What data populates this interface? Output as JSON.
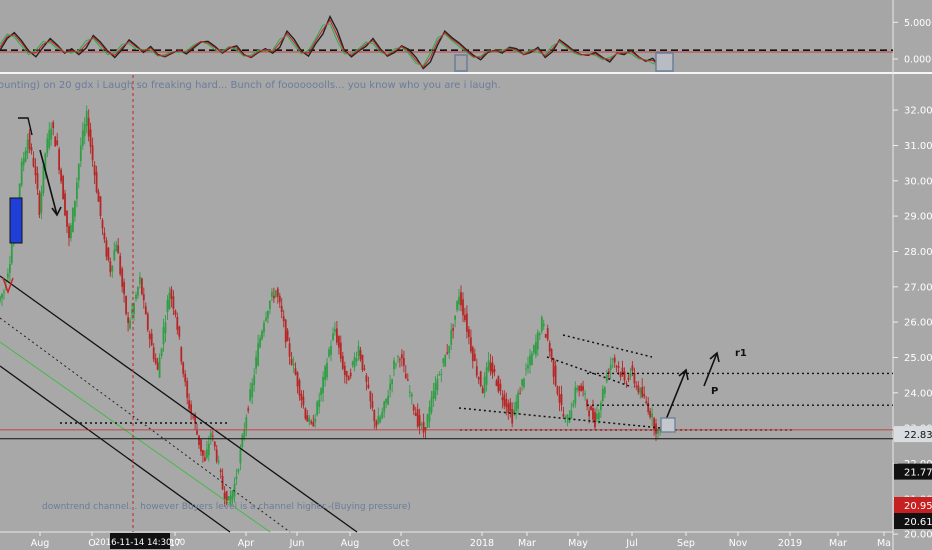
{
  "chart_data": [
    {
      "type": "line",
      "panel": "oscillator",
      "y_ticks": [
        "5.0000",
        "0.0000"
      ],
      "ylim": [
        -1.5,
        7.5
      ],
      "zero_line": 0,
      "series": [
        {
          "color": "#222222",
          "y": [
            1.2,
            2.8,
            3.6,
            2.5,
            1.1,
            0.3,
            1.6,
            2.8,
            1.9,
            0.8,
            1.4,
            0.6,
            1.5,
            3.2,
            2.3,
            1.1,
            0.2,
            1.3,
            2.6,
            1.8,
            0.9,
            1.7,
            0.6,
            0.3,
            0.8,
            1.2,
            0.7,
            1.5,
            2.3,
            2.4,
            1.7,
            0.8,
            1.5,
            1.8,
            0.6,
            0.2,
            0.9,
            1.4,
            0.8,
            1.6,
            3.8,
            2.7,
            1.1,
            0.4,
            2.1,
            3.4,
            5.8,
            3.9,
            1.2,
            0.3,
            1.1,
            1.7,
            2.8,
            1.4,
            0.4,
            0.9,
            1.8,
            1.3,
            0.2,
            -1.3,
            -0.4,
            1.9,
            3.8,
            2.9,
            2.2,
            1.3,
            0.5,
            -0.1,
            0.9,
            1.2,
            0.8,
            1.6,
            1.4,
            0.6,
            0.9,
            1.6,
            0.2,
            1.0,
            2.6,
            1.9,
            1.1,
            0.6,
            0.5,
            0.9,
            0.2,
            -0.4,
            0.8,
            0.6,
            1.2,
            0.3,
            -0.3,
            0.1,
            -1.2
          ]
        },
        {
          "color": "#22b14c",
          "y": [
            2.0,
            3.4,
            3.0,
            1.8,
            0.6,
            1.2,
            2.4,
            2.2,
            1.4,
            1.0,
            0.8,
            1.2,
            2.5,
            2.8,
            1.6,
            0.6,
            0.8,
            2.0,
            2.1,
            1.3,
            1.3,
            1.2,
            0.4,
            0.6,
            1.0,
            0.9,
            1.1,
            1.9,
            2.4,
            2.0,
            1.2,
            1.1,
            1.7,
            1.2,
            0.4,
            0.5,
            1.2,
            1.1,
            1.2,
            2.7,
            3.2,
            1.9,
            0.7,
            1.2,
            2.8,
            4.6,
            4.8,
            2.5,
            0.7,
            0.7,
            1.4,
            2.3,
            2.1,
            0.9,
            0.6,
            1.4,
            1.6,
            0.7,
            -0.6,
            -0.9,
            0.8,
            2.9,
            3.4,
            2.5,
            1.7,
            0.9,
            0.2,
            0.4,
            1.1,
            1.0,
            1.2,
            1.5,
            1.0,
            0.7,
            1.3,
            0.9,
            0.6,
            1.8,
            2.3,
            1.5,
            0.8,
            0.5,
            0.7,
            0.5,
            -0.1,
            0.2,
            0.7,
            0.9,
            0.7,
            0.0,
            -0.1,
            -0.6,
            -0.9
          ]
        },
        {
          "color": "#cc2222",
          "y": [
            1.6,
            3.1,
            3.3,
            2.2,
            0.9,
            0.8,
            2.0,
            2.5,
            1.7,
            0.9,
            1.1,
            0.9,
            2.0,
            3.0,
            2.0,
            0.9,
            0.5,
            1.6,
            2.4,
            1.6,
            1.1,
            1.5,
            0.5,
            0.4,
            0.9,
            1.1,
            0.9,
            1.7,
            2.4,
            2.2,
            1.5,
            0.9,
            1.6,
            1.5,
            0.5,
            0.3,
            1.0,
            1.3,
            1.0,
            2.2,
            3.5,
            2.3,
            0.9,
            0.8,
            2.5,
            4.0,
            5.3,
            3.2,
            1.0,
            0.5,
            1.2,
            2.0,
            2.5,
            1.2,
            0.5,
            1.1,
            1.7,
            1.0,
            -0.2,
            -1.1,
            0.2,
            2.4,
            3.6,
            2.7,
            2.0,
            1.1,
            0.3,
            0.2,
            1.0,
            1.1,
            1.0,
            1.5,
            1.2,
            0.6,
            1.1,
            1.3,
            0.4,
            1.4,
            2.5,
            1.7,
            1.0,
            0.6,
            0.6,
            0.7,
            0.1,
            -0.1,
            0.8,
            0.8,
            1.0,
            0.2,
            -0.2,
            -0.2,
            -1.0
          ]
        }
      ]
    },
    {
      "type": "candlestick",
      "panel": "price",
      "ylim": [
        20.4,
        32.4
      ],
      "y_ticks": [
        "32.00",
        "31.00",
        "30.00",
        "29.00",
        "28.00",
        "27.00",
        "26.00",
        "25.00",
        "24.00",
        "23.00",
        "22.00",
        "21.00",
        "20.00"
      ],
      "x_tick_labels": [
        "Aug",
        "O",
        "2016-11-14 14:30:00",
        "17",
        "Apr",
        "Jun",
        "Aug",
        "Oct",
        "2018",
        "Mar",
        "May",
        "Jul",
        "Sep",
        "Nov",
        "2019",
        "Mar",
        "Ma"
      ],
      "close": [
        26.9,
        27.8,
        29.1,
        30.4,
        31.2,
        30.5,
        29.2,
        30.8,
        31.6,
        30.9,
        29.6,
        28.3,
        29.5,
        31.0,
        31.8,
        30.6,
        29.4,
        28.2,
        27.5,
        28.3,
        27.0,
        25.9,
        26.5,
        27.2,
        26.1,
        25.3,
        24.6,
        25.8,
        26.9,
        26.3,
        25.0,
        23.8,
        23.3,
        22.6,
        22.0,
        22.9,
        22.2,
        21.3,
        20.9,
        21.4,
        22.3,
        23.4,
        24.2,
        25.3,
        26.1,
        26.6,
        26.9,
        26.2,
        25.3,
        24.7,
        24.1,
        23.4,
        23.0,
        23.6,
        24.3,
        25.2,
        25.8,
        25.0,
        24.3,
        24.8,
        25.3,
        24.5,
        23.7,
        23.1,
        23.4,
        24.0,
        24.8,
        25.1,
        24.4,
        23.8,
        23.2,
        22.9,
        23.5,
        24.2,
        24.7,
        25.2,
        25.9,
        26.8,
        26.1,
        25.3,
        24.6,
        24.1,
        24.8,
        24.5,
        24.0,
        23.7,
        23.3,
        23.9,
        24.5,
        24.9,
        25.4,
        26.0,
        25.5,
        24.6,
        23.8,
        23.1,
        23.6,
        24.2,
        24.0,
        23.5,
        23.2,
        23.8,
        24.5,
        25.0,
        24.7,
        24.3,
        24.6,
        24.2,
        23.9,
        23.6,
        23.1,
        22.8
      ],
      "level_lines": [
        {
          "value": 24.55,
          "style": "dotted",
          "label": "r1"
        },
        {
          "value": 23.65,
          "style": "dotted",
          "label": "P"
        },
        {
          "value": 22.95,
          "style": "dotted",
          "label": ""
        },
        {
          "value": 22.95,
          "style": "solid-red",
          "label": ""
        },
        {
          "value": 22.7,
          "style": "solid",
          "label": ""
        }
      ],
      "price_labels": [
        {
          "text": "22.83",
          "value": 22.83,
          "style": "light"
        },
        {
          "text": "21.77",
          "value": 21.77,
          "style": "dark"
        },
        {
          "text": "20.95",
          "style": "red"
        },
        {
          "text": "20.61",
          "style": "dark"
        }
      ],
      "annotations": [
        "ounting) on 20 gdx i Laugh so freaking hard... Bunch of fooooooolls... you know who you are i laugh.",
        "downtrend channel... however Buyers level is a channel higher.-(Buying pressure)",
        "r1",
        "P"
      ]
    }
  ],
  "colors": {
    "background": "#a8a8a8",
    "up_candle": "#2f9e44",
    "down_candle": "#b72626",
    "axis_dark": "#111111",
    "crosshair": "#cc2222",
    "note_text": "#6a7d9b"
  }
}
